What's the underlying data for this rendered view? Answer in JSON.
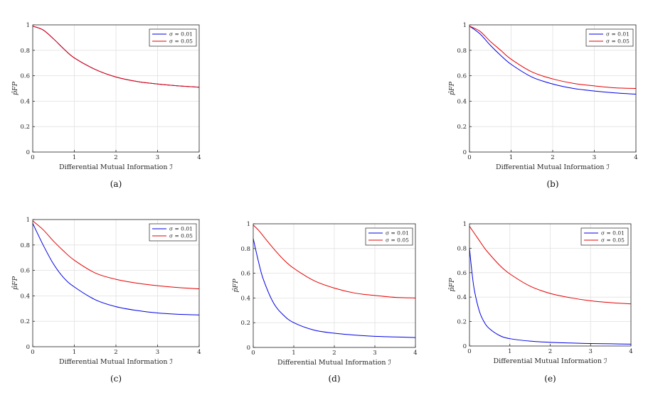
{
  "colors": {
    "blue": "#0000e6",
    "red": "#e60000",
    "grid": "#e1e1e1",
    "axis": "#262626"
  },
  "chart_data": [
    {
      "type": "line",
      "caption": "(a)",
      "xlabel": "Differential Mutual Information ℐ",
      "ylabel": "p̂FP",
      "xlim": [
        0,
        4
      ],
      "ylim": [
        0,
        1
      ],
      "xticks": [
        0,
        1,
        2,
        3,
        4
      ],
      "yticks": [
        0,
        0.2,
        0.4,
        0.6,
        0.8,
        1
      ],
      "grid": true,
      "legend": "top-right",
      "x": [
        0,
        0.25,
        0.5,
        0.75,
        1,
        1.5,
        2,
        2.5,
        3,
        3.5,
        4
      ],
      "series": [
        {
          "name": "σ = 0.01",
          "color": "blue",
          "values": [
            0.99,
            0.96,
            0.89,
            0.81,
            0.74,
            0.65,
            0.59,
            0.555,
            0.535,
            0.52,
            0.51
          ]
        },
        {
          "name": "σ = 0.05",
          "color": "red",
          "values": [
            0.99,
            0.96,
            0.89,
            0.81,
            0.74,
            0.65,
            0.59,
            0.555,
            0.535,
            0.52,
            0.51
          ]
        }
      ]
    },
    {
      "type": "line",
      "caption": "(b)",
      "xlabel": "Differential Mutual Information ℐ",
      "ylabel": "p̂FP",
      "xlim": [
        0,
        4
      ],
      "ylim": [
        0,
        1
      ],
      "xticks": [
        0,
        1,
        2,
        3,
        4
      ],
      "yticks": [
        0,
        0.2,
        0.4,
        0.6,
        0.8,
        1
      ],
      "grid": true,
      "legend": "top-right",
      "x": [
        0,
        0.25,
        0.5,
        0.75,
        1,
        1.5,
        2,
        2.5,
        3,
        3.5,
        4
      ],
      "series": [
        {
          "name": "σ = 0.01",
          "color": "blue",
          "values": [
            0.99,
            0.93,
            0.84,
            0.76,
            0.69,
            0.59,
            0.535,
            0.5,
            0.48,
            0.465,
            0.455
          ]
        },
        {
          "name": "σ = 0.05",
          "color": "red",
          "values": [
            0.99,
            0.95,
            0.87,
            0.8,
            0.73,
            0.63,
            0.575,
            0.54,
            0.52,
            0.505,
            0.5
          ]
        }
      ]
    },
    {
      "type": "line",
      "caption": "(c)",
      "xlabel": "Differential Mutual Information ℐ",
      "ylabel": "p̂FP",
      "xlim": [
        0,
        4
      ],
      "ylim": [
        0,
        1
      ],
      "xticks": [
        0,
        1,
        2,
        3,
        4
      ],
      "yticks": [
        0,
        0.2,
        0.4,
        0.6,
        0.8,
        1
      ],
      "grid": true,
      "legend": "top-right",
      "x": [
        0,
        0.25,
        0.5,
        0.75,
        1,
        1.5,
        2,
        2.5,
        3,
        3.5,
        4
      ],
      "series": [
        {
          "name": "σ = 0.01",
          "color": "blue",
          "values": [
            0.97,
            0.8,
            0.65,
            0.54,
            0.47,
            0.37,
            0.315,
            0.285,
            0.265,
            0.255,
            0.25
          ]
        },
        {
          "name": "σ = 0.05",
          "color": "red",
          "values": [
            0.99,
            0.92,
            0.83,
            0.75,
            0.68,
            0.58,
            0.53,
            0.5,
            0.48,
            0.465,
            0.455
          ]
        }
      ]
    },
    {
      "type": "line",
      "caption": "(d)",
      "xlabel": "Differential Mutual Information ℐ",
      "ylabel": "p̂FP",
      "xlim": [
        0,
        4
      ],
      "ylim": [
        0,
        1
      ],
      "xticks": [
        0,
        1,
        2,
        3,
        4
      ],
      "yticks": [
        0,
        0.2,
        0.4,
        0.6,
        0.8,
        1
      ],
      "grid": true,
      "legend": "top-right",
      "x": [
        0,
        0.125,
        0.25,
        0.5,
        0.75,
        1,
        1.5,
        2,
        2.5,
        3,
        3.5,
        4
      ],
      "series": [
        {
          "name": "σ = 0.01",
          "color": "blue",
          "values": [
            0.88,
            0.7,
            0.55,
            0.36,
            0.26,
            0.2,
            0.14,
            0.115,
            0.1,
            0.09,
            0.085,
            0.08
          ]
        },
        {
          "name": "σ = 0.05",
          "color": "red",
          "values": [
            0.99,
            0.95,
            0.9,
            0.8,
            0.71,
            0.64,
            0.54,
            0.48,
            0.44,
            0.42,
            0.405,
            0.4
          ]
        }
      ]
    },
    {
      "type": "line",
      "caption": "(e)",
      "xlabel": "Differential Mutual Information ℐ",
      "ylabel": "p̂FP",
      "xlim": [
        0,
        4
      ],
      "ylim": [
        0,
        1
      ],
      "xticks": [
        0,
        1,
        2,
        3,
        4
      ],
      "yticks": [
        0,
        0.2,
        0.4,
        0.6,
        0.8,
        1
      ],
      "grid": true,
      "legend": "top-right",
      "x": [
        0,
        0.0625,
        0.125,
        0.25,
        0.375,
        0.5,
        0.75,
        1,
        1.5,
        2,
        2.5,
        3,
        3.5,
        4
      ],
      "series": [
        {
          "name": "σ = 0.01",
          "color": "blue",
          "values": [
            0.8,
            0.6,
            0.45,
            0.28,
            0.19,
            0.14,
            0.085,
            0.06,
            0.04,
            0.03,
            0.025,
            0.02,
            0.018,
            0.015
          ]
        },
        {
          "name": "σ = 0.05",
          "color": "red",
          "values": [
            0.98,
            0.95,
            0.92,
            0.86,
            0.8,
            0.75,
            0.66,
            0.59,
            0.49,
            0.43,
            0.395,
            0.37,
            0.355,
            0.345
          ]
        }
      ]
    }
  ]
}
